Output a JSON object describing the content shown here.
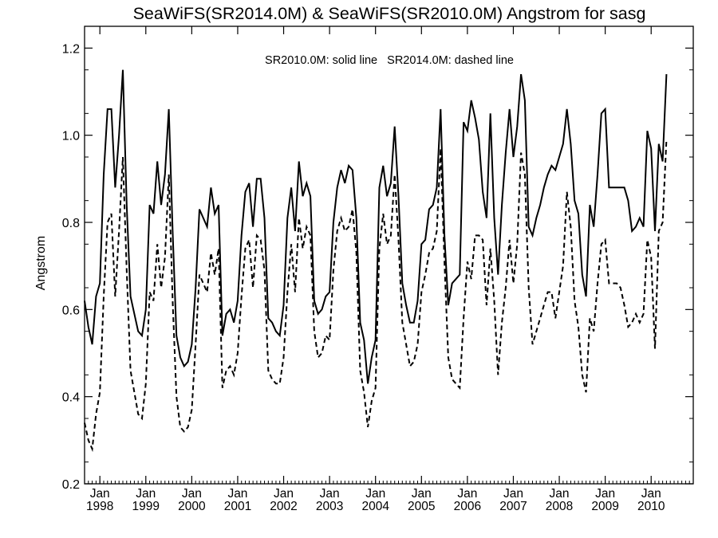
{
  "chart_data": {
    "type": "line",
    "title": "SeaWiFS(SR2014.0M) & SeaWiFS(SR2010.0M)  Angstrom for sasg",
    "xlabel": "",
    "ylabel": "Angstrom",
    "annotation": "SR2010.0M: solid line   SR2014.0M: dashed line",
    "ylim": [
      0.2,
      1.25
    ],
    "xlim": [
      "1997-09",
      "2010-12"
    ],
    "y_ticks": [
      "0.2",
      "0.4",
      "0.6",
      "0.8",
      "1.0",
      "1.2"
    ],
    "x_ticks": [
      {
        "month": "Jan",
        "year": "1998"
      },
      {
        "month": "Jan",
        "year": "1999"
      },
      {
        "month": "Jan",
        "year": "2000"
      },
      {
        "month": "Jan",
        "year": "2001"
      },
      {
        "month": "Jan",
        "year": "2002"
      },
      {
        "month": "Jan",
        "year": "2003"
      },
      {
        "month": "Jan",
        "year": "2004"
      },
      {
        "month": "Jan",
        "year": "2005"
      },
      {
        "month": "Jan",
        "year": "2006"
      },
      {
        "month": "Jan",
        "year": "2007"
      },
      {
        "month": "Jan",
        "year": "2008"
      },
      {
        "month": "Jan",
        "year": "2009"
      },
      {
        "month": "Jan",
        "year": "2010"
      }
    ],
    "grid": false,
    "legend": "none",
    "series": [
      {
        "name": "SR2010.0M",
        "style": "solid",
        "start": "1997-09",
        "values": [
          0.62,
          0.56,
          0.52,
          0.63,
          0.66,
          0.91,
          1.06,
          1.06,
          0.88,
          1.0,
          1.15,
          0.84,
          0.63,
          0.59,
          0.55,
          0.54,
          0.6,
          0.84,
          0.82,
          0.94,
          0.84,
          0.91,
          1.06,
          0.78,
          0.54,
          0.49,
          0.47,
          0.48,
          0.52,
          0.65,
          0.83,
          0.81,
          0.79,
          0.88,
          0.82,
          0.84,
          0.54,
          0.59,
          0.6,
          0.57,
          0.62,
          0.77,
          0.87,
          0.89,
          0.79,
          0.9,
          0.9,
          0.81,
          0.58,
          0.57,
          0.55,
          0.54,
          0.61,
          0.81,
          0.88,
          0.78,
          0.94,
          0.86,
          0.89,
          0.86,
          0.62,
          0.59,
          0.6,
          0.63,
          0.64,
          0.8,
          0.88,
          0.92,
          0.89,
          0.93,
          0.92,
          0.81,
          0.57,
          0.53,
          0.43,
          0.49,
          0.53,
          0.88,
          0.93,
          0.86,
          0.89,
          1.02,
          0.86,
          0.66,
          0.61,
          0.57,
          0.57,
          0.62,
          0.75,
          0.76,
          0.83,
          0.84,
          0.88,
          1.06,
          0.77,
          0.61,
          0.66,
          0.67,
          0.68,
          1.03,
          1.01,
          1.08,
          1.04,
          0.99,
          0.87,
          0.81,
          1.05,
          0.81,
          0.68,
          0.84,
          0.96,
          1.06,
          0.95,
          1.02,
          1.14,
          1.08,
          0.79,
          0.77,
          0.81,
          0.84,
          0.88,
          0.91,
          0.93,
          0.92,
          0.95,
          0.98,
          1.06,
          0.98,
          0.85,
          0.82,
          0.68,
          0.63,
          0.84,
          0.79,
          0.91,
          1.05,
          1.06,
          0.88,
          0.88,
          0.88,
          0.88,
          0.88,
          0.85,
          0.78,
          0.79,
          0.81,
          0.79,
          1.01,
          0.97,
          0.78,
          0.98,
          0.94,
          1.14
        ]
      },
      {
        "name": "SR2014.0M",
        "style": "dashed",
        "start": "1997-09",
        "values": [
          0.34,
          0.3,
          0.28,
          0.36,
          0.41,
          0.63,
          0.8,
          0.82,
          0.63,
          0.78,
          0.95,
          0.69,
          0.46,
          0.41,
          0.36,
          0.35,
          0.43,
          0.64,
          0.62,
          0.75,
          0.65,
          0.72,
          0.91,
          0.62,
          0.4,
          0.33,
          0.32,
          0.33,
          0.37,
          0.52,
          0.68,
          0.66,
          0.64,
          0.73,
          0.68,
          0.74,
          0.42,
          0.46,
          0.47,
          0.45,
          0.5,
          0.63,
          0.74,
          0.76,
          0.65,
          0.77,
          0.76,
          0.69,
          0.46,
          0.44,
          0.43,
          0.43,
          0.49,
          0.64,
          0.75,
          0.64,
          0.81,
          0.74,
          0.79,
          0.77,
          0.55,
          0.49,
          0.5,
          0.54,
          0.53,
          0.69,
          0.78,
          0.81,
          0.78,
          0.79,
          0.83,
          0.73,
          0.46,
          0.41,
          0.33,
          0.39,
          0.42,
          0.74,
          0.82,
          0.75,
          0.77,
          0.91,
          0.76,
          0.57,
          0.52,
          0.47,
          0.48,
          0.52,
          0.64,
          0.68,
          0.73,
          0.74,
          0.78,
          0.97,
          0.71,
          0.49,
          0.44,
          0.43,
          0.42,
          0.58,
          0.71,
          0.67,
          0.77,
          0.77,
          0.76,
          0.61,
          0.74,
          0.62,
          0.45,
          0.57,
          0.65,
          0.76,
          0.66,
          0.75,
          0.96,
          0.91,
          0.65,
          0.52,
          0.55,
          0.58,
          0.61,
          0.64,
          0.64,
          0.58,
          0.64,
          0.7,
          0.87,
          0.79,
          0.62,
          0.56,
          0.45,
          0.41,
          0.58,
          0.55,
          0.66,
          0.75,
          0.76,
          0.66,
          0.66,
          0.66,
          0.65,
          0.61,
          0.56,
          0.57,
          0.59,
          0.57,
          0.59,
          0.76,
          0.72,
          0.51,
          0.78,
          0.8,
          0.99
        ]
      }
    ]
  }
}
